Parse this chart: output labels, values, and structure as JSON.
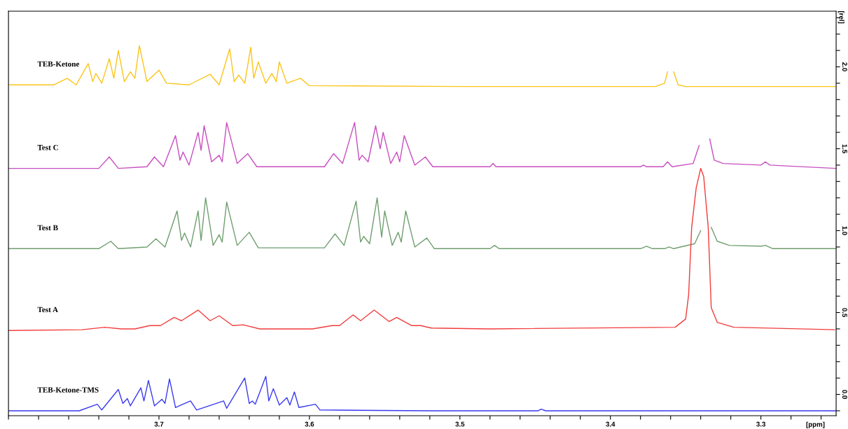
{
  "chart_data": {
    "type": "line",
    "xlabel": "[ppm]",
    "ylabel": "[rel]",
    "xlim": [
      3.8,
      3.25
    ],
    "ylim": [
      -0.13,
      2.34
    ],
    "grid": false,
    "legend": false,
    "marker": "none",
    "line_style": "solid",
    "xticks": [
      {
        "value": 3.8,
        "label": null
      },
      {
        "value": 3.78,
        "label": null
      },
      {
        "value": 3.76,
        "label": null
      },
      {
        "value": 3.74,
        "label": null
      },
      {
        "value": 3.72,
        "label": null
      },
      3.7,
      {
        "value": 3.68,
        "label": null
      },
      {
        "value": 3.66,
        "label": null
      },
      {
        "value": 3.64,
        "label": null
      },
      {
        "value": 3.62,
        "label": null
      },
      3.6,
      {
        "value": 3.58,
        "label": null
      },
      {
        "value": 3.56,
        "label": null
      },
      {
        "value": 3.54,
        "label": null
      },
      {
        "value": 3.52,
        "label": null
      },
      3.5,
      {
        "value": 3.48,
        "label": null
      },
      {
        "value": 3.46,
        "label": null
      },
      {
        "value": 3.44,
        "label": null
      },
      {
        "value": 3.42,
        "label": null
      },
      3.4,
      {
        "value": 3.38,
        "label": null
      },
      {
        "value": 3.36,
        "label": null
      },
      {
        "value": 3.34,
        "label": null
      },
      {
        "value": 3.32,
        "label": null
      },
      3.3,
      {
        "value": 3.28,
        "label": null
      },
      {
        "value": 3.26,
        "label": null
      }
    ],
    "yticks": [
      {
        "value": -0.1,
        "label": null
      },
      {
        "value": 0,
        "label": "0.0"
      },
      {
        "value": 0.1,
        "label": null
      },
      {
        "value": 0.2,
        "label": null
      },
      {
        "value": 0.3,
        "label": null
      },
      {
        "value": 0.4,
        "label": null
      },
      0.5,
      {
        "value": 0.6,
        "label": null
      },
      {
        "value": 0.7,
        "label": null
      },
      {
        "value": 0.8,
        "label": null
      },
      {
        "value": 0.9,
        "label": null
      },
      {
        "value": 1.0,
        "label": "1.0"
      },
      {
        "value": 1.1,
        "label": null
      },
      {
        "value": 1.2,
        "label": null
      },
      {
        "value": 1.3,
        "label": null
      },
      {
        "value": 1.4,
        "label": null
      },
      1.5,
      {
        "value": 1.6,
        "label": null
      },
      {
        "value": 1.7,
        "label": null
      },
      {
        "value": 1.8,
        "label": null
      },
      {
        "value": 1.9,
        "label": null
      },
      {
        "value": 2.0,
        "label": "2.0"
      },
      {
        "value": 2.1,
        "label": null
      },
      {
        "value": 2.2,
        "label": null
      },
      {
        "value": 2.3,
        "label": null
      }
    ],
    "series": [
      {
        "name": "TEB-Ketone",
        "color": "#fcc419",
        "x": [
          3.8,
          3.77,
          3.761,
          3.755,
          3.747,
          3.744,
          3.742,
          3.738,
          3.733,
          3.73,
          3.727,
          3.723,
          3.719,
          3.716,
          3.713,
          3.708,
          3.7,
          3.695,
          3.68,
          3.666,
          3.66,
          3.653,
          3.65,
          3.647,
          3.643,
          3.639,
          3.637,
          3.634,
          3.629,
          3.625,
          3.622,
          3.62,
          3.615,
          3.606,
          3.6,
          3.5,
          3.37,
          3.364,
          3.362,
          3.36,
          3.358,
          3.355,
          3.35,
          3.25
        ],
        "values": [
          1.89,
          1.89,
          1.93,
          1.89,
          2.02,
          1.91,
          1.96,
          1.9,
          2.05,
          1.93,
          2.1,
          1.91,
          1.97,
          1.93,
          2.13,
          1.91,
          1.98,
          1.9,
          1.89,
          1.955,
          1.89,
          2.11,
          1.91,
          1.95,
          1.9,
          2.12,
          1.93,
          2.03,
          1.9,
          1.96,
          1.91,
          2.03,
          1.9,
          1.93,
          1.885,
          1.88,
          1.88,
          1.9,
          1.97,
          null,
          1.97,
          1.89,
          1.88,
          1.88
        ]
      },
      {
        "name": "Test C",
        "color": "#c84ec0",
        "x": [
          3.8,
          3.74,
          3.733,
          3.727,
          3.708,
          3.703,
          3.697,
          3.689,
          3.686,
          3.684,
          3.68,
          3.674,
          3.672,
          3.67,
          3.665,
          3.66,
          3.658,
          3.655,
          3.648,
          3.641,
          3.635,
          3.59,
          3.584,
          3.578,
          3.57,
          3.567,
          3.565,
          3.561,
          3.556,
          3.553,
          3.551,
          3.546,
          3.542,
          3.54,
          3.537,
          3.53,
          3.523,
          3.518,
          3.48,
          3.478,
          3.476,
          3.38,
          3.378,
          3.376,
          3.365,
          3.362,
          3.359,
          3.345,
          3.341,
          3.339,
          3.338,
          3.336,
          3.334,
          3.331,
          3.325,
          3.3,
          3.297,
          3.294,
          3.283,
          3.25
        ],
        "values": [
          1.38,
          1.38,
          1.45,
          1.38,
          1.39,
          1.45,
          1.39,
          1.58,
          1.43,
          1.48,
          1.4,
          1.6,
          1.49,
          1.64,
          1.42,
          1.46,
          1.42,
          1.66,
          1.41,
          1.47,
          1.39,
          1.39,
          1.47,
          1.41,
          1.66,
          1.43,
          1.46,
          1.42,
          1.64,
          1.5,
          1.6,
          1.41,
          1.48,
          1.42,
          1.58,
          1.4,
          1.45,
          1.39,
          1.39,
          1.41,
          1.39,
          1.39,
          1.4,
          1.39,
          1.39,
          1.42,
          1.39,
          1.41,
          1.52,
          null,
          null,
          null,
          1.56,
          1.43,
          1.41,
          1.4,
          1.42,
          1.4,
          1.395,
          1.38
        ]
      },
      {
        "name": "Test B",
        "color": "#6f9e6f",
        "x": [
          3.8,
          3.74,
          3.732,
          3.727,
          3.708,
          3.702,
          3.696,
          3.688,
          3.685,
          3.683,
          3.679,
          3.674,
          3.672,
          3.669,
          3.664,
          3.66,
          3.658,
          3.655,
          3.648,
          3.64,
          3.634,
          3.59,
          3.583,
          3.577,
          3.569,
          3.566,
          3.564,
          3.56,
          3.555,
          3.552,
          3.55,
          3.545,
          3.541,
          3.539,
          3.536,
          3.53,
          3.522,
          3.517,
          3.48,
          3.477,
          3.474,
          3.38,
          3.376,
          3.372,
          3.364,
          3.361,
          3.358,
          3.344,
          3.34,
          3.337,
          3.336,
          3.335,
          3.333,
          3.329,
          3.321,
          3.3,
          3.297,
          3.292,
          3.25
        ],
        "values": [
          0.89,
          0.89,
          0.935,
          0.89,
          0.9,
          0.95,
          0.9,
          1.12,
          0.94,
          0.985,
          0.9,
          1.12,
          0.94,
          1.2,
          0.91,
          0.975,
          0.93,
          1.175,
          0.91,
          0.99,
          0.895,
          0.895,
          0.98,
          0.91,
          1.18,
          0.93,
          0.965,
          0.92,
          1.2,
          0.96,
          1.12,
          0.91,
          0.99,
          0.93,
          1.12,
          0.9,
          0.955,
          0.89,
          0.89,
          0.91,
          0.89,
          0.89,
          0.905,
          0.89,
          0.89,
          0.9,
          0.89,
          0.92,
          1.0,
          null,
          null,
          null,
          1.02,
          0.935,
          0.91,
          0.905,
          0.91,
          0.89,
          0.89
        ]
      },
      {
        "name": "Test A",
        "color": "#f23c3c",
        "x": [
          3.8,
          3.751,
          3.736,
          3.725,
          3.716,
          3.706,
          3.699,
          3.69,
          3.685,
          3.674,
          3.666,
          3.66,
          3.651,
          3.644,
          3.633,
          3.598,
          3.585,
          3.58,
          3.571,
          3.566,
          3.557,
          3.547,
          3.542,
          3.532,
          3.526,
          3.519,
          3.48,
          3.357,
          3.35,
          3.348,
          3.346,
          3.343,
          3.34,
          3.338,
          3.335,
          3.333,
          3.329,
          3.318,
          3.251
        ],
        "values": [
          0.39,
          0.395,
          0.41,
          0.4,
          0.4,
          0.42,
          0.42,
          0.47,
          0.45,
          0.515,
          0.45,
          0.48,
          0.42,
          0.425,
          0.4,
          0.4,
          0.42,
          0.42,
          0.485,
          0.45,
          0.515,
          0.445,
          0.47,
          0.42,
          0.42,
          0.405,
          0.4,
          0.41,
          0.46,
          0.61,
          1.02,
          1.26,
          1.38,
          1.33,
          1.02,
          0.53,
          0.44,
          0.41,
          0.395
        ]
      },
      {
        "name": "TEB-Ketone-TMS",
        "color": "#3a3af0",
        "x": [
          3.8,
          3.753,
          3.741,
          3.738,
          3.727,
          3.724,
          3.721,
          3.719,
          3.712,
          3.71,
          3.707,
          3.703,
          3.698,
          3.696,
          3.693,
          3.689,
          3.679,
          3.675,
          3.657,
          3.655,
          3.643,
          3.64,
          3.638,
          3.636,
          3.629,
          3.627,
          3.624,
          3.62,
          3.615,
          3.613,
          3.61,
          3.607,
          3.596,
          3.593,
          3.519,
          3.448,
          3.446,
          3.443,
          3.25
        ],
        "values": [
          -0.1,
          -0.1,
          -0.06,
          -0.095,
          0.03,
          -0.055,
          -0.025,
          -0.07,
          0.04,
          -0.04,
          0.085,
          -0.07,
          -0.03,
          -0.055,
          0.095,
          -0.08,
          -0.04,
          -0.095,
          -0.04,
          -0.085,
          0.1,
          -0.055,
          -0.04,
          -0.06,
          0.11,
          -0.04,
          0.035,
          -0.065,
          -0.02,
          -0.065,
          0.015,
          -0.08,
          -0.06,
          -0.095,
          -0.1,
          -0.1,
          -0.09,
          -0.1,
          -0.1
        ]
      }
    ]
  }
}
